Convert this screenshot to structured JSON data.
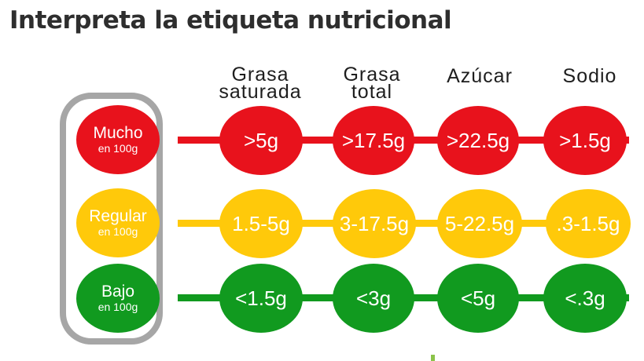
{
  "title": "Interpreta la etiqueta nutricional",
  "columns": [
    {
      "line1": "Grasa",
      "line2": "saturada"
    },
    {
      "line1": "Grasa",
      "line2": "total"
    },
    {
      "line1": "Azúcar",
      "line2": ""
    },
    {
      "line1": "Sodio",
      "line2": ""
    }
  ],
  "levels": [
    {
      "label": "Mucho",
      "unit": "en 100g",
      "color": "#e8121c",
      "values": [
        ">5g",
        ">17.5g",
        ">22.5g",
        ">1.5g"
      ]
    },
    {
      "label": "Regular",
      "unit": "en 100g",
      "color": "#ffc90a",
      "values": [
        "1.5-5g",
        "3-17.5g",
        "5-22.5g",
        ".3-1.5g"
      ]
    },
    {
      "label": "Bajo",
      "unit": "en 100g",
      "color": "#119a1f",
      "values": [
        "<1.5g",
        "<3g",
        "<5g",
        "<.3g"
      ]
    }
  ]
}
